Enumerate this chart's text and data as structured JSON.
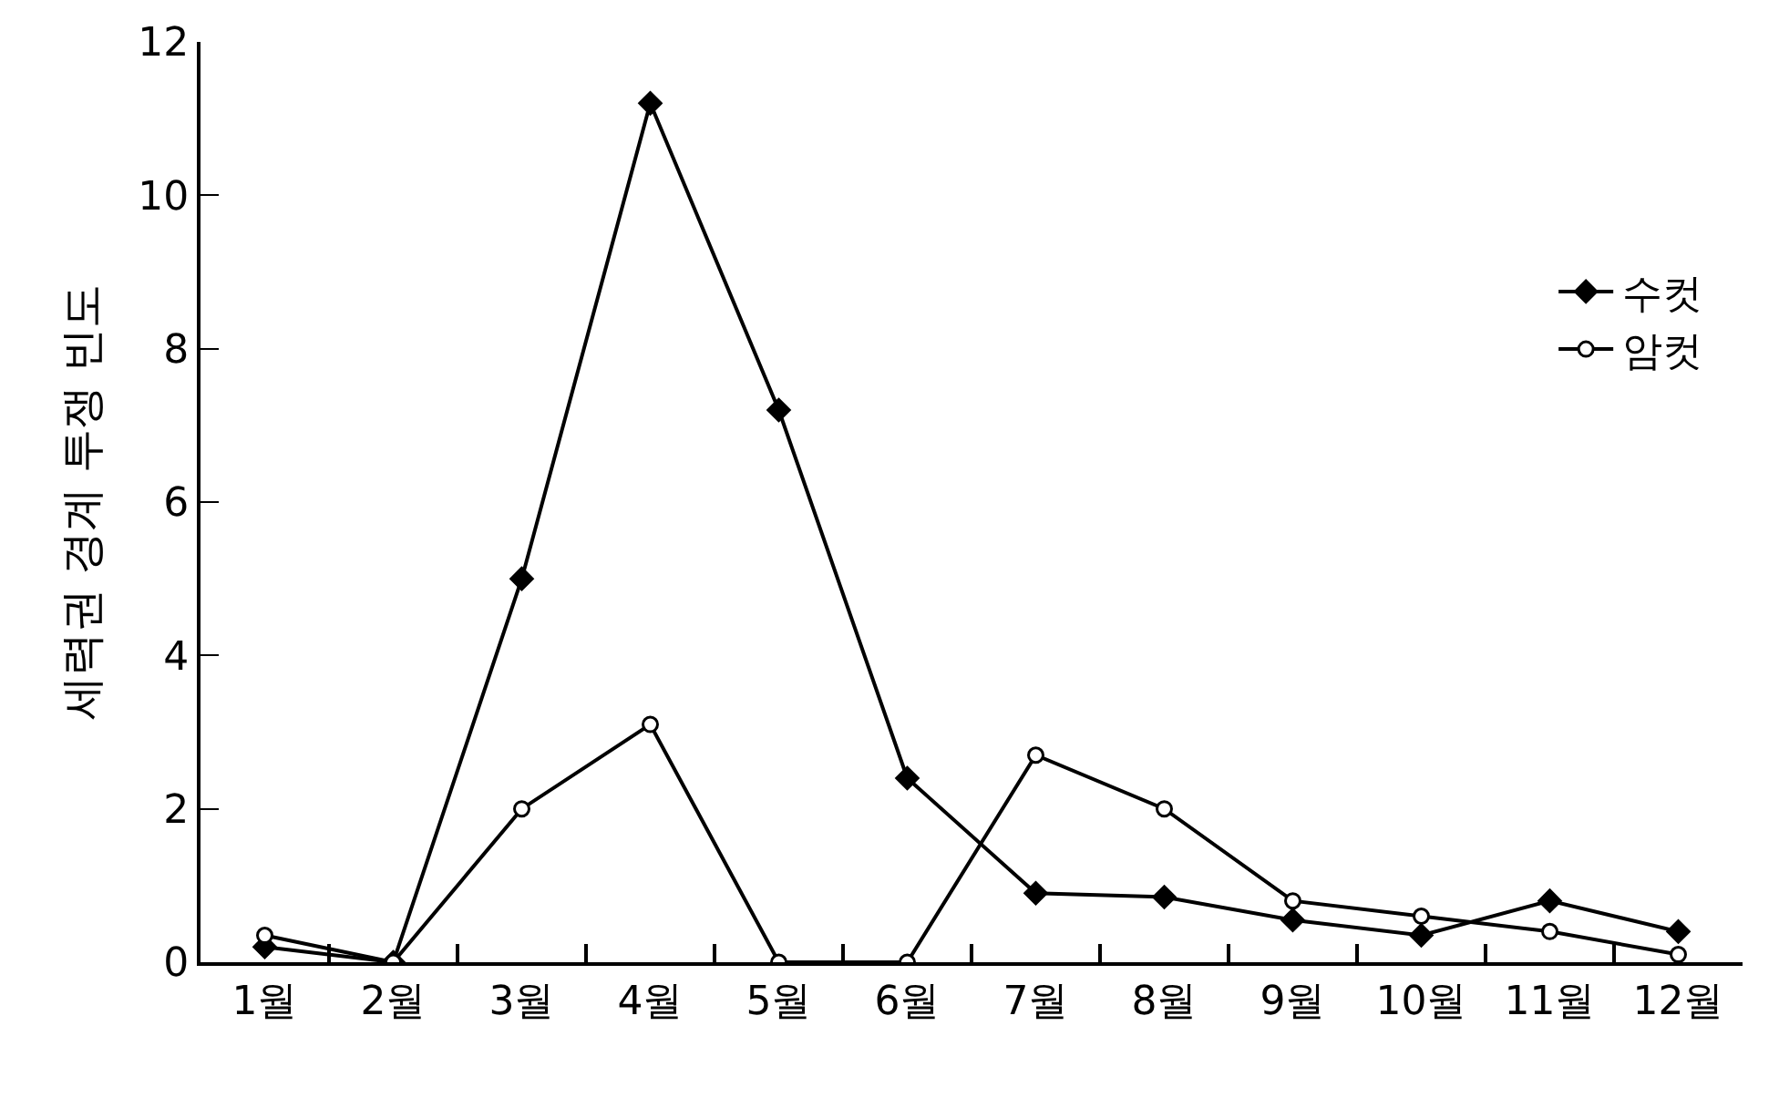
{
  "chart_data": {
    "type": "line",
    "ylabel": "세력권 경계 투쟁 빈도",
    "categories": [
      "1월",
      "2월",
      "3월",
      "4월",
      "5월",
      "6월",
      "7월",
      "8월",
      "9월",
      "10월",
      "11월",
      "12월"
    ],
    "series": [
      {
        "name": "수컷",
        "color": "#000000",
        "marker": "diamond",
        "values": [
          0.2,
          0,
          5.0,
          11.2,
          7.2,
          2.4,
          0.9,
          0.85,
          0.55,
          0.35,
          0.8,
          0.4
        ]
      },
      {
        "name": "암컷",
        "color": "#000000",
        "marker": "circle",
        "values": [
          0.35,
          0,
          2.0,
          3.1,
          0,
          0,
          2.7,
          2.0,
          0.8,
          0.6,
          0.4,
          0.1
        ]
      }
    ],
    "ylim": [
      0,
      12
    ],
    "yticks": [
      0,
      2,
      4,
      6,
      8,
      10,
      12
    ],
    "legend": "top right",
    "line_style": "solid"
  }
}
